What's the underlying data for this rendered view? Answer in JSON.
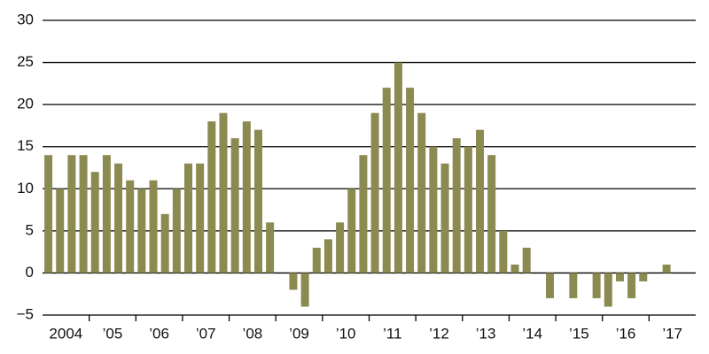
{
  "chart_data": {
    "type": "bar",
    "categories": [
      "2004",
      null,
      null,
      null,
      "’05",
      null,
      null,
      null,
      "’06",
      null,
      null,
      null,
      "’07",
      null,
      null,
      null,
      "’08",
      null,
      null,
      null,
      "’09",
      null,
      null,
      null,
      "’10",
      null,
      null,
      null,
      "’11",
      null,
      null,
      null,
      "’12",
      null,
      null,
      null,
      "’13",
      null,
      null,
      null,
      "’14",
      null,
      null,
      null,
      "’15",
      null,
      null,
      null,
      "’16",
      null,
      null,
      null,
      "’17",
      null
    ],
    "values": [
      14,
      10,
      14,
      14,
      12,
      14,
      13,
      11,
      10,
      11,
      7,
      10,
      13,
      13,
      18,
      19,
      16,
      18,
      17,
      6,
      0,
      -2,
      -4,
      3,
      4,
      6,
      10,
      14,
      19,
      22,
      25,
      22,
      19,
      15,
      13,
      16,
      15,
      17,
      14,
      5,
      1,
      3,
      0,
      -3,
      0,
      -3,
      0,
      -3,
      -4,
      -1,
      -3,
      -1,
      0,
      1
    ],
    "color": "#8b8a50",
    "ylim": [
      -5,
      30
    ],
    "yticks": [
      {
        "value": -5,
        "label": "−5"
      },
      0,
      5,
      10,
      15,
      20,
      25,
      30
    ],
    "grid": true
  }
}
